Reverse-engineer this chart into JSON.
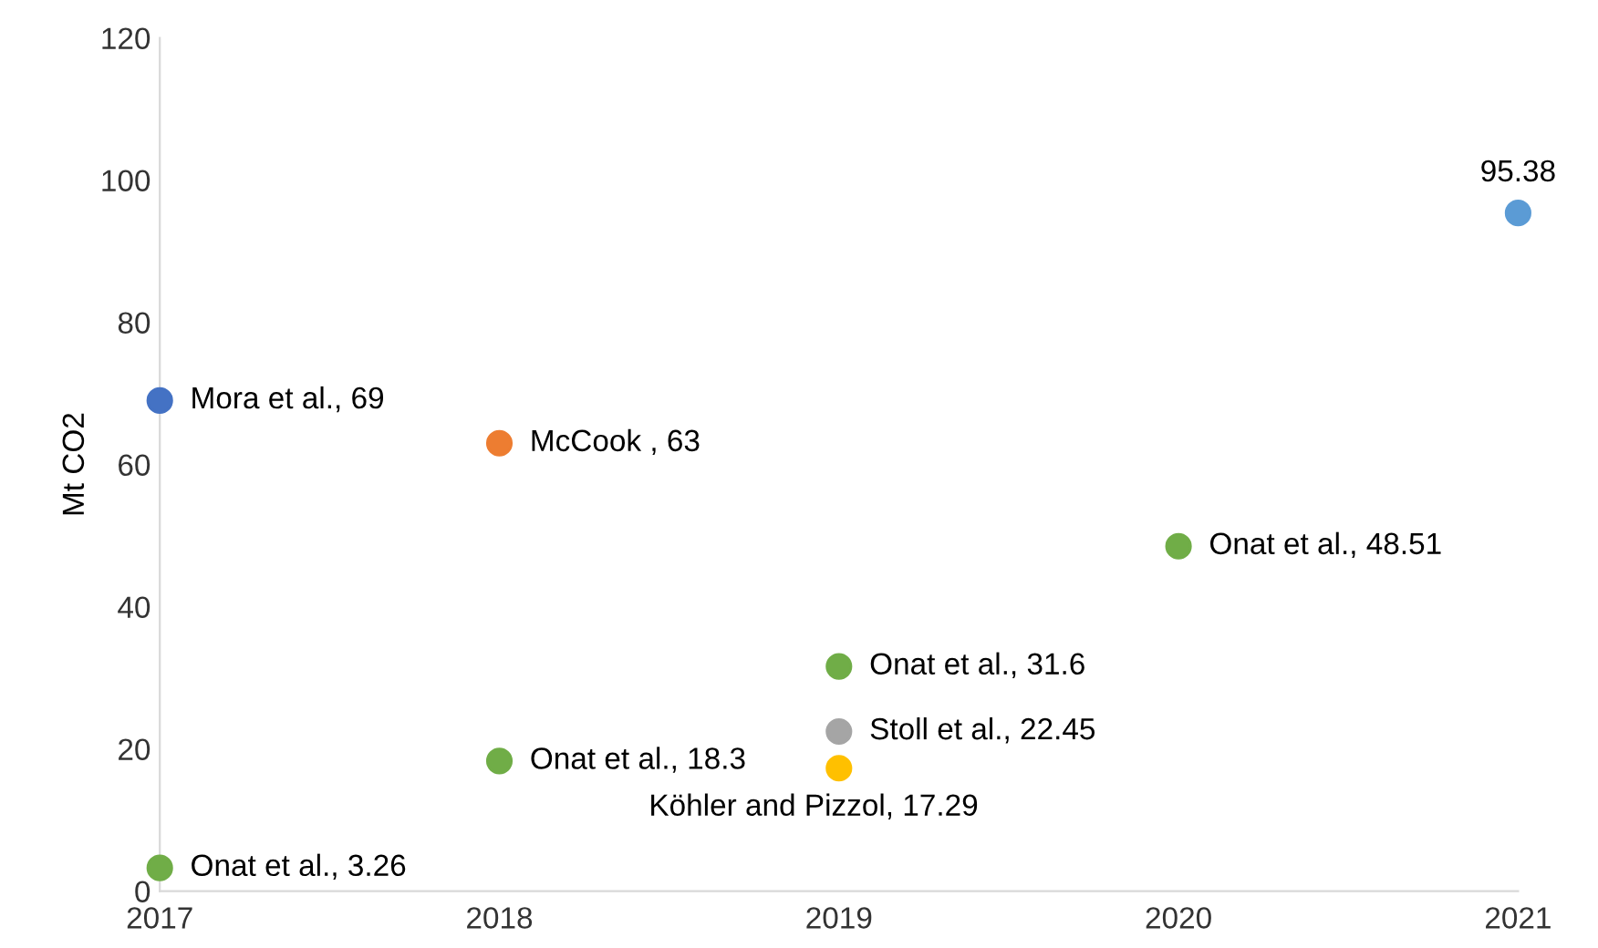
{
  "chart_data": {
    "type": "scatter",
    "ylabel": "Mt CO2",
    "x": [
      2017,
      2017,
      2018,
      2018,
      2019,
      2019,
      2019,
      2020,
      2021
    ],
    "values": [
      69,
      3.26,
      63,
      18.3,
      31.6,
      22.45,
      17.29,
      48.51,
      95.38
    ],
    "colors": [
      "#4472c4",
      "#70ad47",
      "#ed7d31",
      "#70ad47",
      "#70ad47",
      "#a5a5a5",
      "#ffc000",
      "#70ad47",
      "#5b9bd5"
    ],
    "value_labels": [
      "Mora et al., 69",
      "Onat et al., 3.26",
      "McCook , 63",
      "Onat et al., 18.3",
      "Onat et al., 31.6",
      "Stoll et al., 22.45",
      "Köhler and Pizzol, 17.29",
      "Onat et al., 48.51",
      "95.38"
    ],
    "xlim": [
      2017,
      2021
    ],
    "xticks": [
      2017,
      2018,
      2019,
      2020,
      2021
    ],
    "ylim": [
      0,
      120
    ],
    "yticks": [
      0,
      20,
      40,
      60,
      80,
      100,
      120
    ],
    "marker": "circle",
    "grid": false,
    "legend": false
  }
}
